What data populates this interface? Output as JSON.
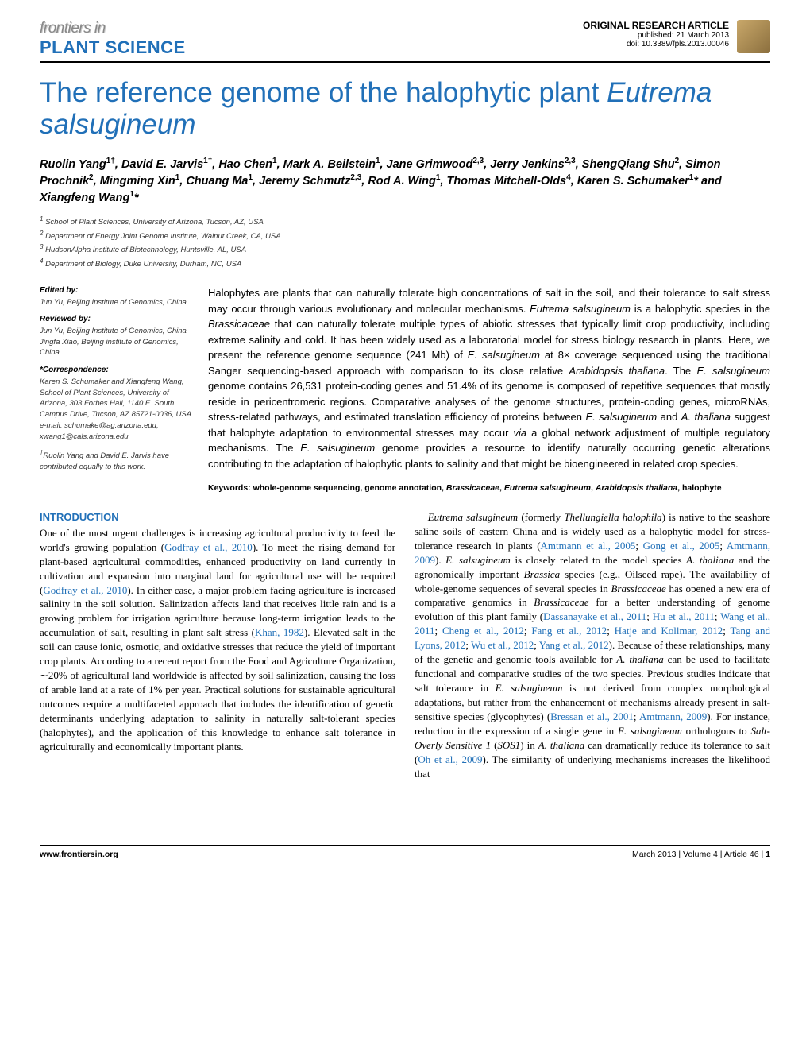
{
  "header": {
    "journal_top": "frontiers in",
    "journal_bottom": "PLANT SCIENCE",
    "article_type": "ORIGINAL RESEARCH ARTICLE",
    "pub_date": "published: 21 March 2013",
    "doi": "doi: 10.3389/fpls.2013.00046"
  },
  "title_plain": "The reference genome of the halophytic plant ",
  "title_italic": "Eutrema salsugineum",
  "authors_html": "Ruolin Yang<sup>1†</sup>, David E. Jarvis<sup>1†</sup>, Hao Chen<sup>1</sup>, Mark A. Beilstein<sup>1</sup>, Jane Grimwood<sup>2,3</sup>, Jerry Jenkins<sup>2,3</sup>, ShengQiang Shu<sup>2</sup>, Simon Prochnik<sup>2</sup>, Mingming Xin<sup>1</sup>, Chuang Ma<sup>1</sup>, Jeremy Schmutz<sup>2,3</sup>, Rod A. Wing<sup>1</sup>, Thomas Mitchell-Olds<sup>4</sup>, Karen S. Schumaker<sup>1</sup>* and Xiangfeng Wang<sup>1</sup>*",
  "affiliations": [
    "<sup>1</sup> School of Plant Sciences, University of Arizona, Tucson, AZ, USA",
    "<sup>2</sup> Department of Energy Joint Genome Institute, Walnut Creek, CA, USA",
    "<sup>3</sup> HudsonAlpha Institute of Biotechnology, Huntsville, AL, USA",
    "<sup>4</sup> Department of Biology, Duke University, Durham, NC, USA"
  ],
  "sidebar": {
    "edited_label": "Edited by:",
    "edited_by": "Jun Yu, Beijing Institute of Genomics, China",
    "reviewed_label": "Reviewed by:",
    "reviewed_by": "Jun Yu, Beijing Institute of Genomics, China<br>Jingfa Xiao, Beijing institute of Genomics, China",
    "corr_label": "*Correspondence:",
    "corr_body": "Karen S. Schumaker and Xiangfeng Wang, School of Plant Sciences, University of Arizona, 303 Forbes Hall, 1140 E. South Campus Drive, Tucson, AZ 85721-0036, USA.<br>e-mail: schumake@ag.arizona.edu; xwang1@cals.arizona.edu",
    "contrib": "<sup>†</sup>Ruolin Yang and David E. Jarvis have contributed equally to this work."
  },
  "abstract": "Halophytes are plants that can naturally tolerate high concentrations of salt in the soil, and their tolerance to salt stress may occur through various evolutionary and molecular mechanisms. <span class=\"italic\">Eutrema salsugineum</span> is a halophytic species in the <span class=\"italic\">Brassicaceae</span> that can naturally tolerate multiple types of abiotic stresses that typically limit crop productivity, including extreme salinity and cold. It has been widely used as a laboratorial model for stress biology research in plants. Here, we present the reference genome sequence (241 Mb) of <span class=\"italic\">E. salsugineum</span> at 8× coverage sequenced using the traditional Sanger sequencing-based approach with comparison to its close relative <span class=\"italic\">Arabidopsis thaliana</span>. The <span class=\"italic\">E. salsugineum</span> genome contains 26,531 protein-coding genes and 51.4% of its genome is composed of repetitive sequences that mostly reside in pericentromeric regions. Comparative analyses of the genome structures, protein-coding genes, microRNAs, stress-related pathways, and estimated translation efficiency of proteins between <span class=\"italic\">E. salsugineum</span> and <span class=\"italic\">A. thaliana</span> suggest that halophyte adaptation to environmental stresses may occur <span class=\"italic\">via</span> a global network adjustment of multiple regulatory mechanisms. The <span class=\"italic\">E. salsugineum</span> genome provides a resource to identify naturally occurring genetic alterations contributing to the adaptation of halophytic plants to salinity and that might be bioengineered in related crop species.",
  "keywords": "Keywords: whole-genome sequencing, genome annotation, <span class=\"italic\">Brassicaceae</span>, <span class=\"italic\">Eutrema salsugineum</span>, <span class=\"italic\">Arabidopsis thaliana</span>, halophyte",
  "intro_head": "INTRODUCTION",
  "col1": "One of the most urgent challenges is increasing agricultural productivity to feed the world's growing population (<span class=\"cite\">Godfray et al., 2010</span>). To meet the rising demand for plant-based agricultural commodities, enhanced productivity on land currently in cultivation and expansion into marginal land for agricultural use will be required (<span class=\"cite\">Godfray et al., 2010</span>). In either case, a major problem facing agriculture is increased salinity in the soil solution. Salinization affects land that receives little rain and is a growing problem for irrigation agriculture because long-term irrigation leads to the accumulation of salt, resulting in plant salt stress (<span class=\"cite\">Khan, 1982</span>). Elevated salt in the soil can cause ionic, osmotic, and oxidative stresses that reduce the yield of important crop plants. According to a recent report from the Food and Agriculture Organization, ∼20% of agricultural land worldwide is affected by soil salinization, causing the loss of arable land at a rate of 1% per year. Practical solutions for sustainable agricultural outcomes require a multifaceted approach that includes the identification of genetic determinants underlying adaptation to salinity in naturally salt-tolerant species (halophytes), and the application of this knowledge to enhance salt tolerance in agriculturally and economically important plants.",
  "col2": "&nbsp;&nbsp;&nbsp;&nbsp;<span class=\"italic\">Eutrema salsugineum</span> (formerly <span class=\"italic\">Thellungiella halophila</span>) is native to the seashore saline soils of eastern China and is widely used as a halophytic model for stress-tolerance research in plants (<span class=\"cite\">Amtmann et al., 2005</span>; <span class=\"cite\">Gong et al., 2005</span>; <span class=\"cite\">Amtmann, 2009</span>). <span class=\"italic\">E. salsugineum</span> is closely related to the model species <span class=\"italic\">A. thaliana</span> and the agronomically important <span class=\"italic\">Brassica</span> species (e.g., Oilseed rape). The availability of whole-genome sequences of several species in <span class=\"italic\">Brassicaceae</span> has opened a new era of comparative genomics in <span class=\"italic\">Brassicaceae</span> for a better understanding of genome evolution of this plant family (<span class=\"cite\">Dassanayake et al., 2011</span>; <span class=\"cite\">Hu et al., 2011</span>; <span class=\"cite\">Wang et al., 2011</span>; <span class=\"cite\">Cheng et al., 2012</span>; <span class=\"cite\">Fang et al., 2012</span>; <span class=\"cite\">Hatje and Kollmar, 2012</span>; <span class=\"cite\">Tang and Lyons, 2012</span>; <span class=\"cite\">Wu et al., 2012</span>; <span class=\"cite\">Yang et al., 2012</span>). Because of these relationships, many of the genetic and genomic tools available for <span class=\"italic\">A. thaliana</span> can be used to facilitate functional and comparative studies of the two species. Previous studies indicate that salt tolerance in <span class=\"italic\">E. salsugineum</span> is not derived from complex morphological adaptations, but rather from the enhancement of mechanisms already present in salt-sensitive species (glycophytes) (<span class=\"cite\">Bressan et al., 2001</span>; <span class=\"cite\">Amtmann, 2009</span>). For instance, reduction in the expression of a single gene in <span class=\"italic\">E. salsugineum</span> orthologous to <span class=\"italic\">Salt-Overly Sensitive 1</span> (<span class=\"italic\">SOS1</span>) in <span class=\"italic\">A. thaliana</span> can dramatically reduce its tolerance to salt (<span class=\"cite\">Oh et al., 2009</span>). The similarity of underlying mechanisms increases the likelihood that",
  "footer": {
    "left": "www.frontiersin.org",
    "right": "March 2013 | Volume 4 | Article 46 | <b>1</b>"
  }
}
